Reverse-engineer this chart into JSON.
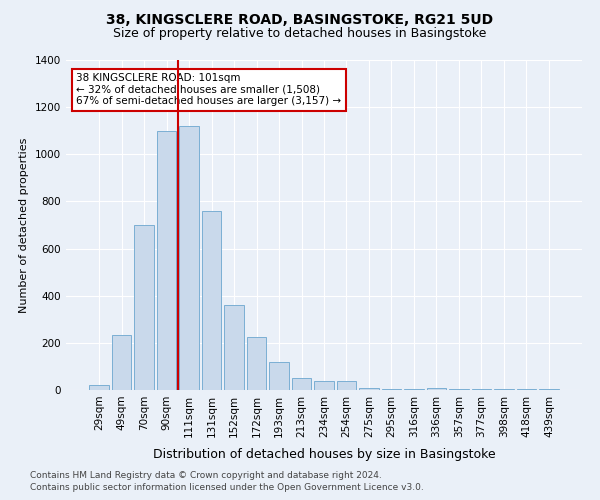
{
  "title": "38, KINGSCLERE ROAD, BASINGSTOKE, RG21 5UD",
  "subtitle": "Size of property relative to detached houses in Basingstoke",
  "xlabel": "Distribution of detached houses by size in Basingstoke",
  "ylabel": "Number of detached properties",
  "footnote1": "Contains HM Land Registry data © Crown copyright and database right 2024.",
  "footnote2": "Contains public sector information licensed under the Open Government Licence v3.0.",
  "annotation_line1": "38 KINGSCLERE ROAD: 101sqm",
  "annotation_line2": "← 32% of detached houses are smaller (1,508)",
  "annotation_line3": "67% of semi-detached houses are larger (3,157) →",
  "bar_labels": [
    "29sqm",
    "49sqm",
    "70sqm",
    "90sqm",
    "111sqm",
    "131sqm",
    "152sqm",
    "172sqm",
    "193sqm",
    "213sqm",
    "234sqm",
    "254sqm",
    "275sqm",
    "295sqm",
    "316sqm",
    "336sqm",
    "357sqm",
    "377sqm",
    "398sqm",
    "418sqm",
    "439sqm"
  ],
  "bar_values": [
    20,
    235,
    700,
    1100,
    1120,
    760,
    360,
    225,
    120,
    50,
    40,
    40,
    10,
    5,
    5,
    10,
    5,
    5,
    5,
    5,
    5
  ],
  "bar_color": "#c9d9eb",
  "bar_edge_color": "#7bafd4",
  "vline_color": "#cc0000",
  "annotation_box_color": "#cc0000",
  "ylim": [
    0,
    1400
  ],
  "yticks": [
    0,
    200,
    400,
    600,
    800,
    1000,
    1200,
    1400
  ],
  "bg_color": "#eaf0f8",
  "plot_bg_color": "#eaf0f8",
  "grid_color": "#ffffff",
  "title_fontsize": 10,
  "subtitle_fontsize": 9,
  "xlabel_fontsize": 9,
  "ylabel_fontsize": 8,
  "tick_fontsize": 7.5,
  "annotation_fontsize": 7.5,
  "footnote_fontsize": 6.5
}
